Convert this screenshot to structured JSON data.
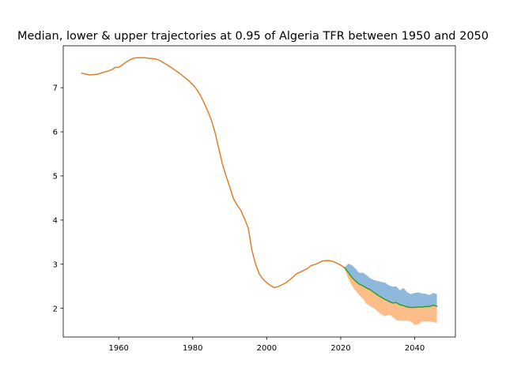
{
  "chart_data": {
    "type": "line",
    "title": "Median, lower & upper trajectories at 0.95 of Algeria TFR between 1950 and 2050",
    "xlabel": "",
    "ylabel": "",
    "xlim": [
      1945,
      2051
    ],
    "ylim": [
      1.35,
      7.95
    ],
    "xticks": [
      1960,
      1980,
      2000,
      2020,
      2040
    ],
    "yticks": [
      2,
      3,
      4,
      5,
      6,
      7
    ],
    "grid": false,
    "legend": "none",
    "colors": {
      "historical": "#dd7f2b",
      "median": "#2ca02c",
      "upper_fill": "#8fb9dc",
      "lower_fill": "#fdbd88"
    },
    "series": [
      {
        "role": "historical",
        "x": [
          1950,
          1952,
          1954,
          1956,
          1958,
          1959,
          1960,
          1961,
          1962,
          1963,
          1964,
          1965,
          1966,
          1967,
          1968,
          1969,
          1970,
          1971,
          1972,
          1973,
          1974,
          1975,
          1976,
          1977,
          1978,
          1979,
          1980,
          1981,
          1982,
          1983,
          1984,
          1985,
          1986,
          1987,
          1988,
          1989,
          1990,
          1991,
          1992,
          1993,
          1994,
          1995,
          1996,
          1997,
          1998,
          1999,
          2000,
          2001,
          2002,
          2003,
          2004,
          2005,
          2006,
          2007,
          2008,
          2009,
          2010,
          2011,
          2012,
          2013,
          2014,
          2015,
          2016,
          2017,
          2018,
          2019,
          2020,
          2021
        ],
        "y": [
          7.33,
          7.29,
          7.3,
          7.35,
          7.4,
          7.46,
          7.46,
          7.52,
          7.58,
          7.63,
          7.67,
          7.68,
          7.68,
          7.68,
          7.67,
          7.66,
          7.65,
          7.62,
          7.57,
          7.52,
          7.47,
          7.41,
          7.35,
          7.29,
          7.22,
          7.15,
          7.07,
          6.97,
          6.84,
          6.67,
          6.48,
          6.27,
          6.0,
          5.64,
          5.28,
          5.0,
          4.75,
          4.49,
          4.34,
          4.22,
          4.03,
          3.82,
          3.32,
          3.0,
          2.78,
          2.66,
          2.58,
          2.52,
          2.47,
          2.49,
          2.53,
          2.57,
          2.63,
          2.7,
          2.78,
          2.82,
          2.86,
          2.9,
          2.97,
          2.99,
          3.03,
          3.07,
          3.08,
          3.08,
          3.06,
          3.02,
          2.98,
          2.92
        ]
      },
      {
        "role": "median",
        "x": [
          2021,
          2022,
          2023,
          2024,
          2025,
          2026,
          2027,
          2028,
          2029,
          2030,
          2031,
          2032,
          2033,
          2034,
          2035,
          2036,
          2037,
          2038,
          2039,
          2040,
          2041,
          2042,
          2043,
          2044,
          2045,
          2046
        ],
        "y": [
          2.92,
          2.82,
          2.7,
          2.62,
          2.55,
          2.51,
          2.46,
          2.42,
          2.36,
          2.3,
          2.25,
          2.2,
          2.16,
          2.12,
          2.13,
          2.08,
          2.06,
          2.03,
          2.02,
          2.02,
          2.03,
          2.03,
          2.04,
          2.04,
          2.07,
          2.05
        ]
      }
    ],
    "bands": [
      {
        "role": "upper",
        "x": [
          2021,
          2022,
          2023,
          2024,
          2025,
          2026,
          2027,
          2028,
          2029,
          2030,
          2031,
          2032,
          2033,
          2034,
          2035,
          2036,
          2037,
          2038,
          2039,
          2040,
          2041,
          2042,
          2043,
          2044,
          2045,
          2046
        ],
        "low": [
          2.92,
          2.82,
          2.7,
          2.62,
          2.55,
          2.51,
          2.46,
          2.42,
          2.36,
          2.3,
          2.25,
          2.2,
          2.16,
          2.12,
          2.13,
          2.08,
          2.06,
          2.03,
          2.02,
          2.02,
          2.03,
          2.03,
          2.04,
          2.04,
          2.07,
          2.05
        ],
        "high": [
          2.92,
          3.01,
          2.98,
          2.9,
          2.8,
          2.81,
          2.75,
          2.68,
          2.64,
          2.62,
          2.6,
          2.58,
          2.52,
          2.49,
          2.5,
          2.41,
          2.46,
          2.36,
          2.32,
          2.35,
          2.36,
          2.34,
          2.33,
          2.3,
          2.35,
          2.32
        ]
      },
      {
        "role": "lower",
        "x": [
          2021,
          2022,
          2023,
          2024,
          2025,
          2026,
          2027,
          2028,
          2029,
          2030,
          2031,
          2032,
          2033,
          2034,
          2035,
          2036,
          2037,
          2038,
          2039,
          2040,
          2041,
          2042,
          2043,
          2044,
          2045,
          2046
        ],
        "low": [
          2.92,
          2.68,
          2.52,
          2.4,
          2.3,
          2.22,
          2.1,
          2.05,
          2.0,
          1.93,
          1.86,
          1.82,
          1.86,
          1.81,
          1.73,
          1.72,
          1.72,
          1.72,
          1.7,
          1.62,
          1.64,
          1.7,
          1.7,
          1.7,
          1.69,
          1.67
        ],
        "high": [
          2.92,
          2.82,
          2.7,
          2.62,
          2.55,
          2.51,
          2.46,
          2.42,
          2.36,
          2.3,
          2.25,
          2.2,
          2.16,
          2.12,
          2.13,
          2.08,
          2.06,
          2.03,
          2.02,
          2.02,
          2.03,
          2.03,
          2.04,
          2.04,
          2.07,
          2.05
        ]
      }
    ]
  }
}
